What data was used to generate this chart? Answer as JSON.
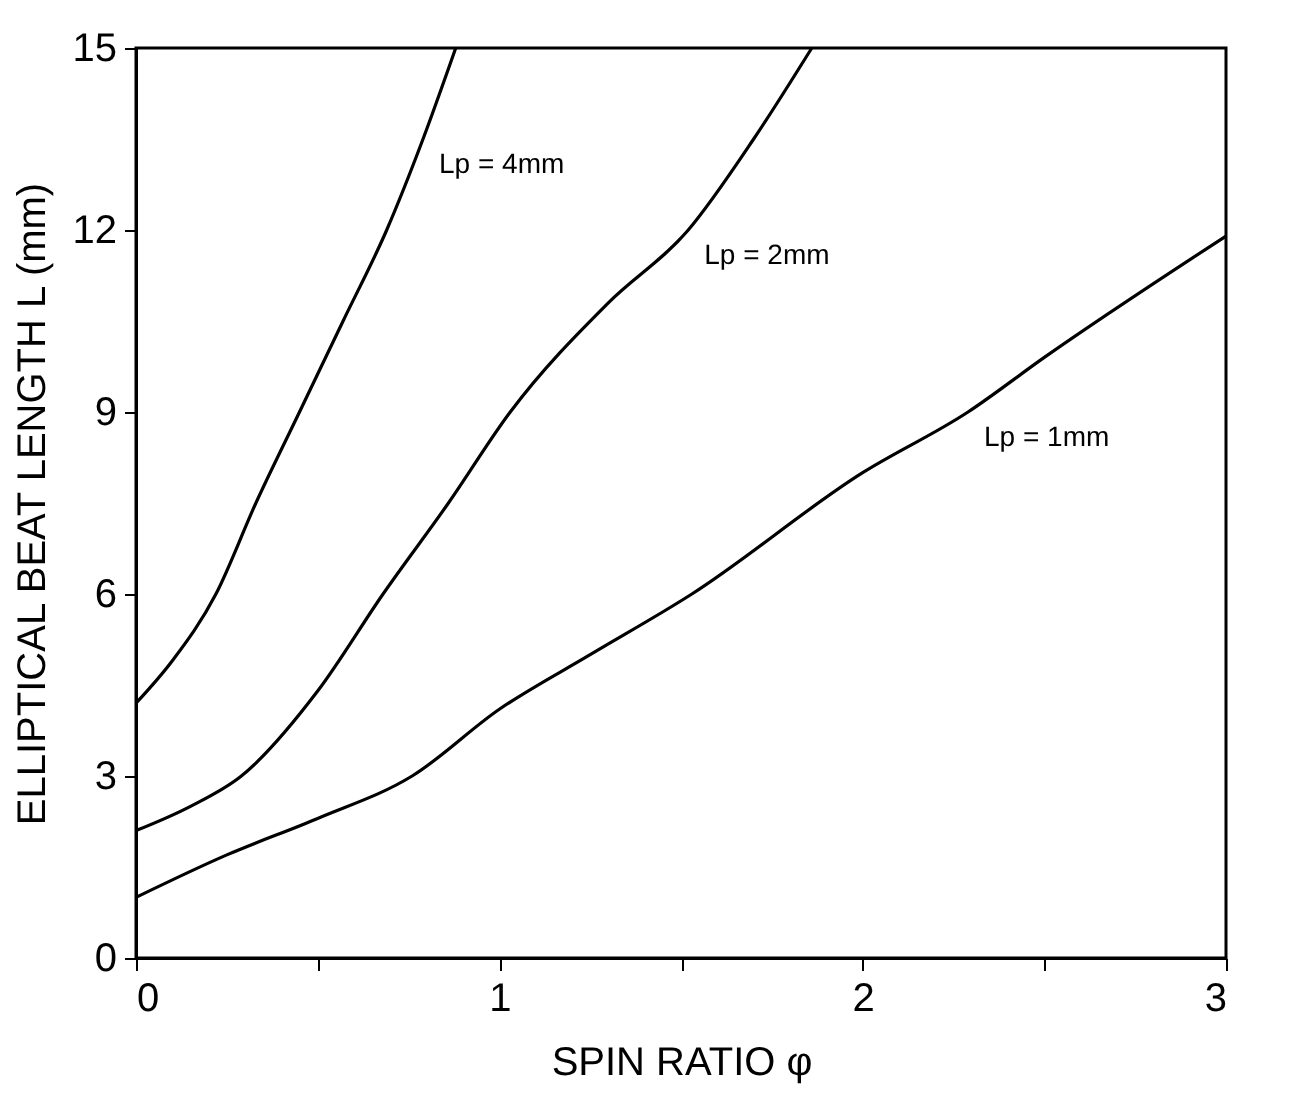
{
  "chart_data": {
    "type": "line",
    "xlabel": "SPIN RATIO φ",
    "ylabel": "ELLIPTICAL BEAT LENGTH L  (mm)",
    "xlim": [
      0,
      3
    ],
    "ylim": [
      0,
      15
    ],
    "xticks": [
      0,
      {
        "value": 0.5,
        "label": null
      },
      1,
      {
        "value": 1.5,
        "label": null
      },
      2,
      {
        "value": 2.5,
        "label": null
      },
      3
    ],
    "yticks": [
      0,
      3,
      6,
      9,
      12,
      15
    ],
    "grid": false,
    "marker": "none",
    "line_style": "solid",
    "series": [
      {
        "name": "Lp = 4mm",
        "color": "#000000",
        "x": [
          0,
          0.1,
          0.22,
          0.33,
          0.45,
          0.57,
          0.69,
          0.79,
          0.88
        ],
        "values": [
          4.2,
          4.9,
          6.0,
          7.5,
          9.0,
          10.5,
          12.0,
          13.5,
          15.0
        ]
      },
      {
        "name": "Lp = 2mm",
        "color": "#000000",
        "x": [
          0,
          0.15,
          0.29,
          0.5,
          0.68,
          0.86,
          1.03,
          1.3,
          1.52,
          1.7,
          1.86
        ],
        "values": [
          2.1,
          2.5,
          3.0,
          4.4,
          6.0,
          7.5,
          9.0,
          10.8,
          12.0,
          13.5,
          15.0
        ]
      },
      {
        "name": "Lp = 1mm",
        "color": "#000000",
        "x": [
          0,
          0.25,
          0.5,
          0.76,
          1,
          1.25,
          1.53,
          2,
          2.29,
          2.5,
          3
        ],
        "values": [
          1.0,
          1.7,
          2.3,
          3.0,
          4.1,
          5.0,
          6.0,
          8.0,
          9.0,
          9.9,
          11.9
        ]
      }
    ]
  }
}
